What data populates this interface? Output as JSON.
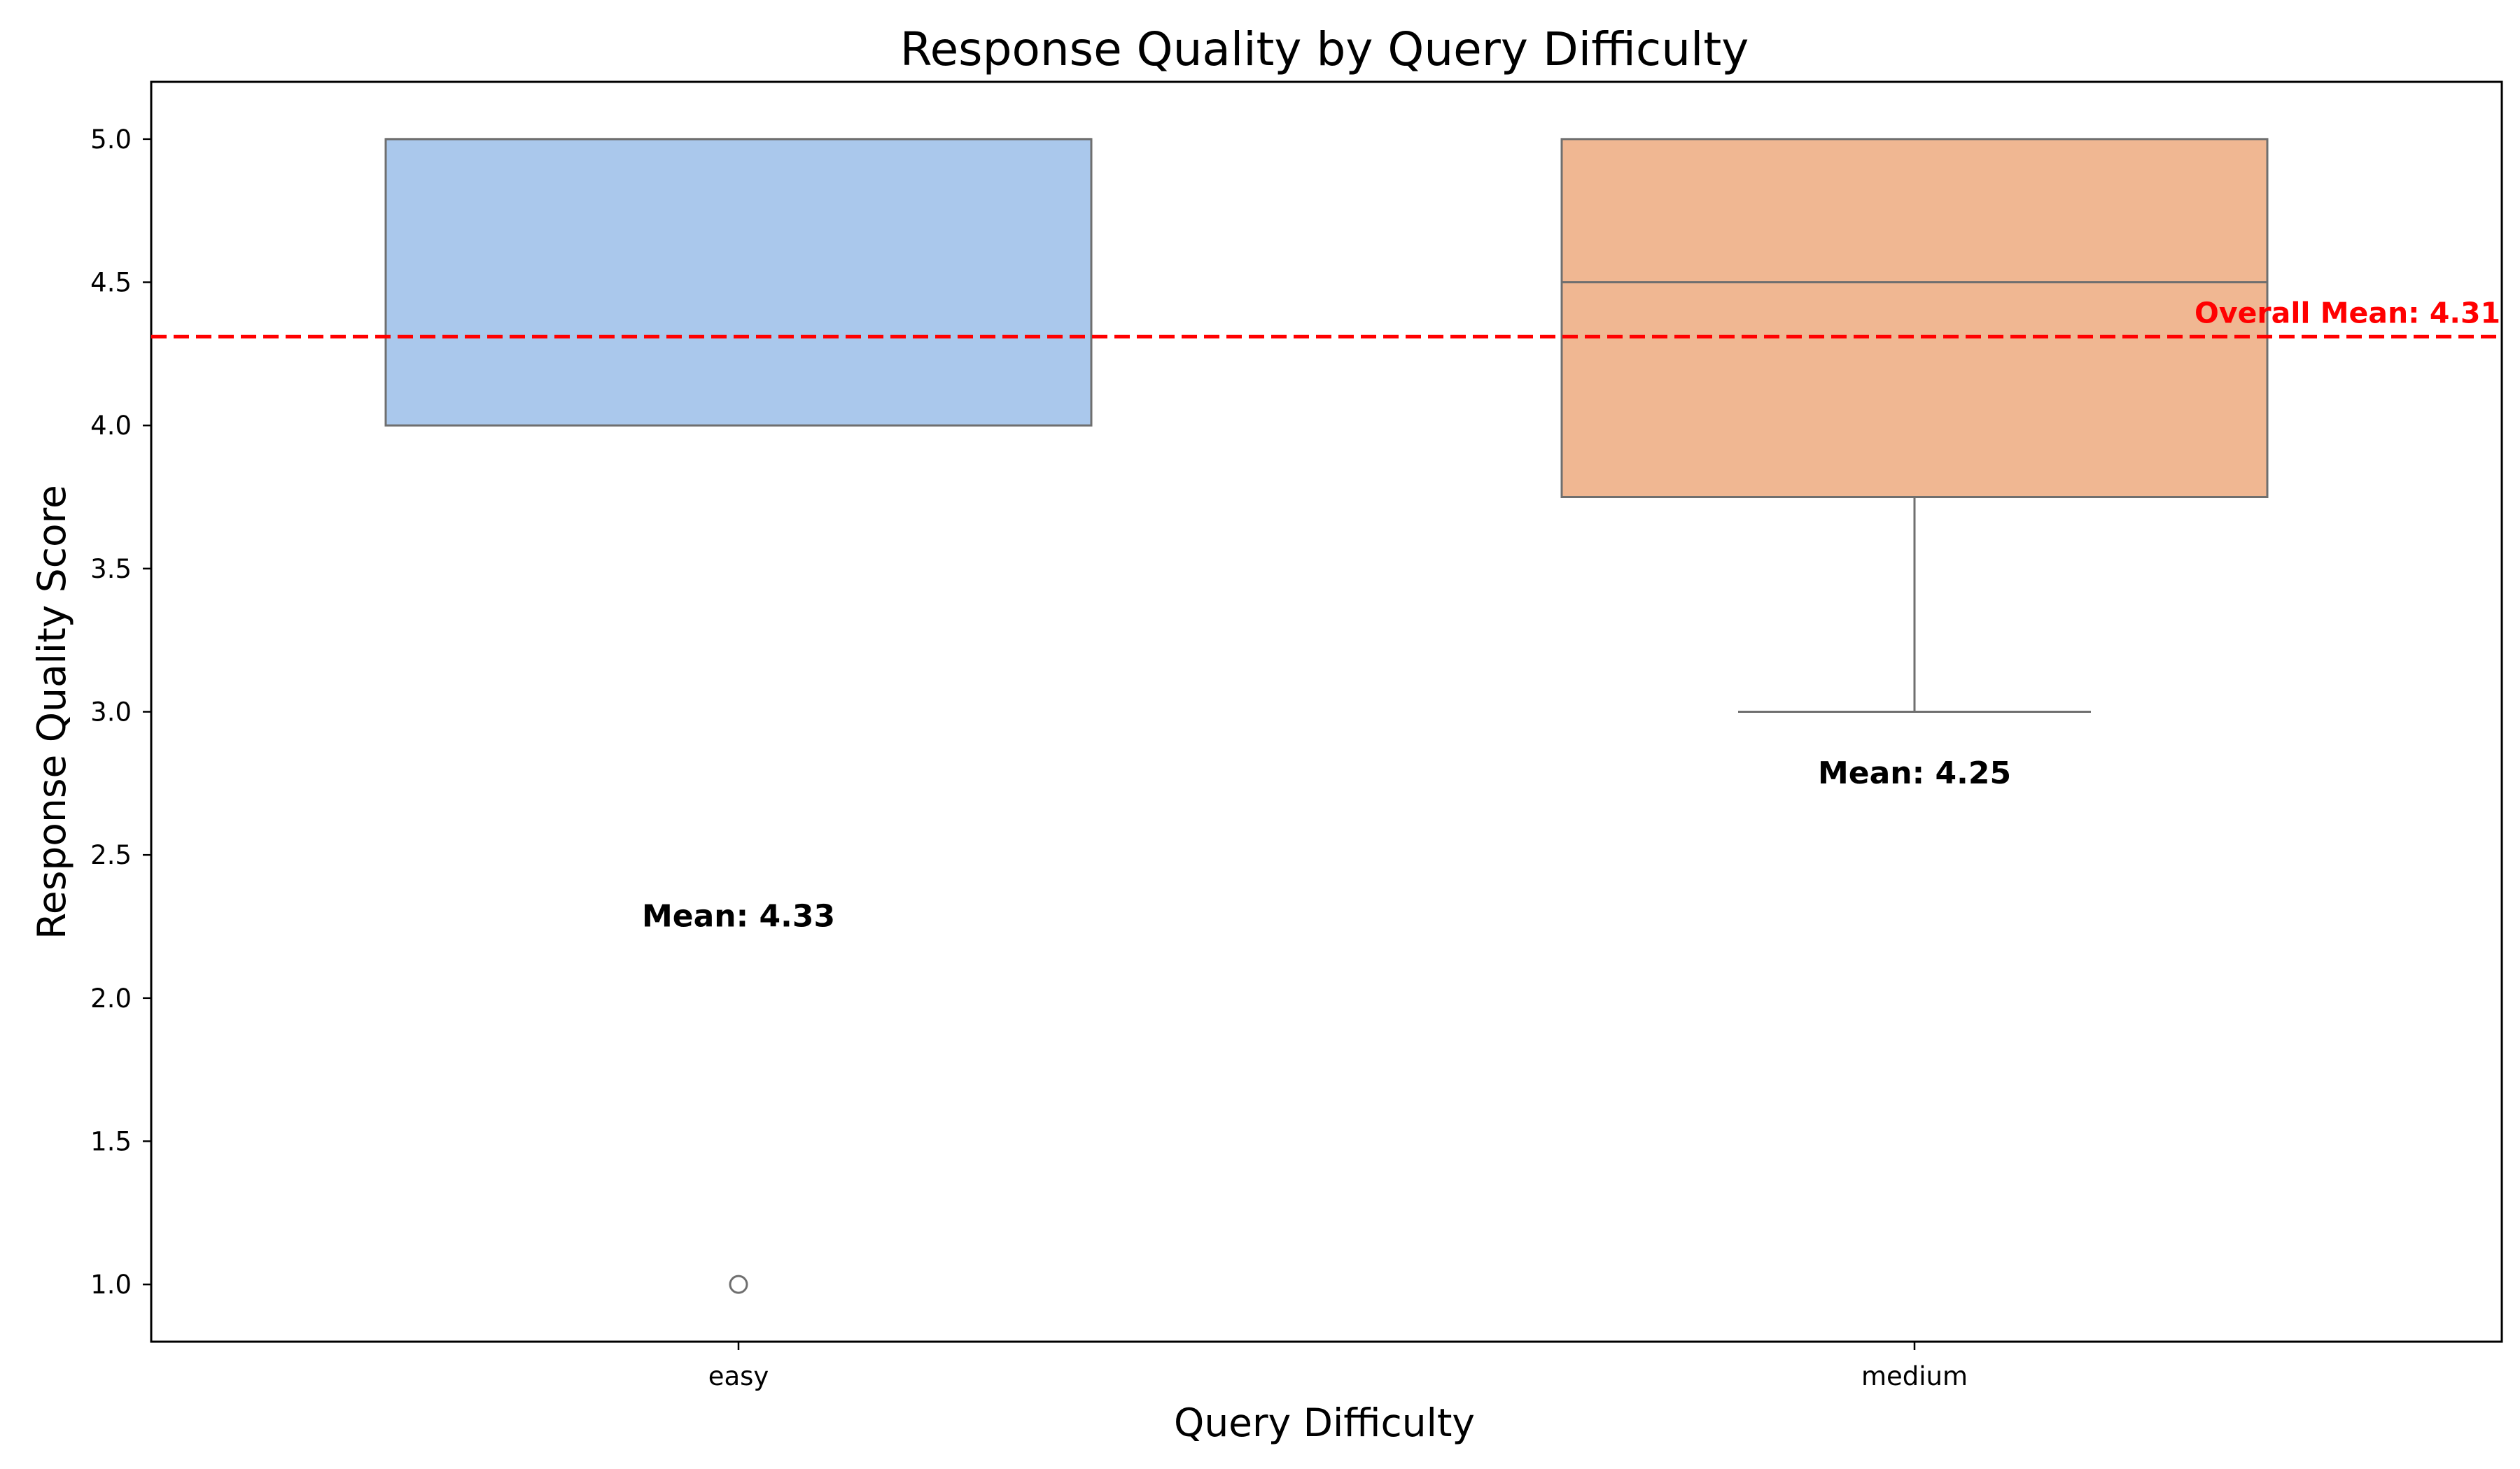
{
  "chart_data": {
    "type": "box",
    "title": "Response Quality by Query Difficulty",
    "xlabel": "Query Difficulty",
    "ylabel": "Response Quality Score",
    "ylim": [
      0.8,
      5.2
    ],
    "yticks": [
      "1.0",
      "1.5",
      "2.0",
      "2.5",
      "3.0",
      "3.5",
      "4.0",
      "4.5",
      "5.0"
    ],
    "categories": [
      "easy",
      "medium"
    ],
    "boxes": [
      {
        "category": "easy",
        "q1": 4.0,
        "median": 5.0,
        "q3": 5.0,
        "whisker_low": 4.0,
        "whisker_high": 5.0,
        "outliers": [
          1.0
        ],
        "mean": 4.33,
        "mean_label": "Mean: 4.33",
        "mean_label_y": 2.25,
        "color": "#aac8ec"
      },
      {
        "category": "medium",
        "q1": 3.75,
        "median": 4.5,
        "q3": 5.0,
        "whisker_low": 3.0,
        "whisker_high": 5.0,
        "outliers": [],
        "mean": 4.25,
        "mean_label": "Mean: 4.25",
        "mean_label_y": 2.75,
        "color": "#f0b792"
      }
    ],
    "reference_line": {
      "y": 4.31,
      "label": "Overall Mean: 4.31",
      "color": "#ff0000",
      "style": "dashed"
    },
    "box_edge_color": "#6f6f6f",
    "grid": false,
    "legend": "none"
  }
}
